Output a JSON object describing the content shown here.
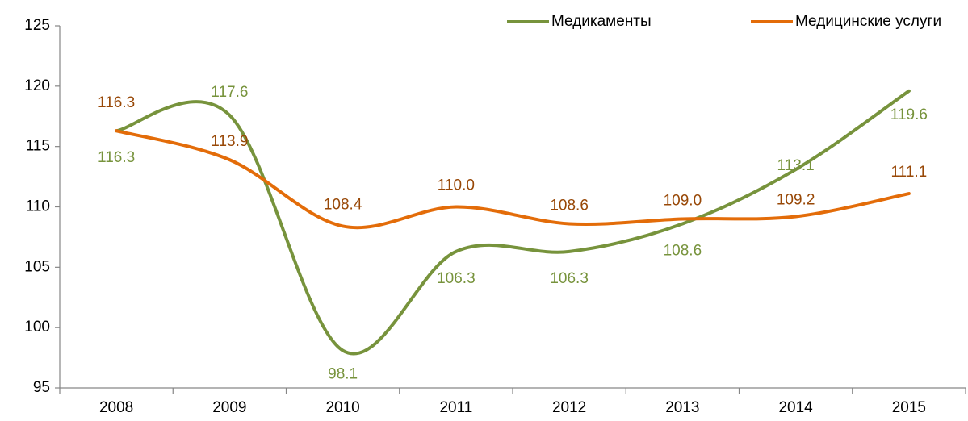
{
  "chart_data": {
    "type": "line",
    "smooth": true,
    "categories": [
      "2008",
      "2009",
      "2010",
      "2011",
      "2012",
      "2013",
      "2014",
      "2015"
    ],
    "series": [
      {
        "name": "Медикаменты",
        "color": "#77933c",
        "values": [
          116.3,
          117.6,
          98.1,
          106.3,
          106.3,
          108.6,
          113.1,
          119.6
        ],
        "value_labels": [
          "116.3",
          "117.6",
          "98.1",
          "106.3",
          "106.3",
          "108.6",
          "113.1",
          "119.6"
        ]
      },
      {
        "name": "Медицинские услуги",
        "color": "#e36c09",
        "values": [
          116.3,
          113.9,
          108.4,
          110.0,
          108.6,
          109.0,
          109.2,
          111.1
        ],
        "value_labels": [
          "116.3",
          "113.9",
          "108.4",
          "110.0",
          "108.6",
          "109.0",
          "109.2",
          "111.1"
        ]
      }
    ],
    "ylim": [
      95,
      125
    ],
    "yticks": [
      95,
      100,
      105,
      110,
      115,
      120,
      125
    ],
    "grid": false,
    "legend": "top-right"
  }
}
